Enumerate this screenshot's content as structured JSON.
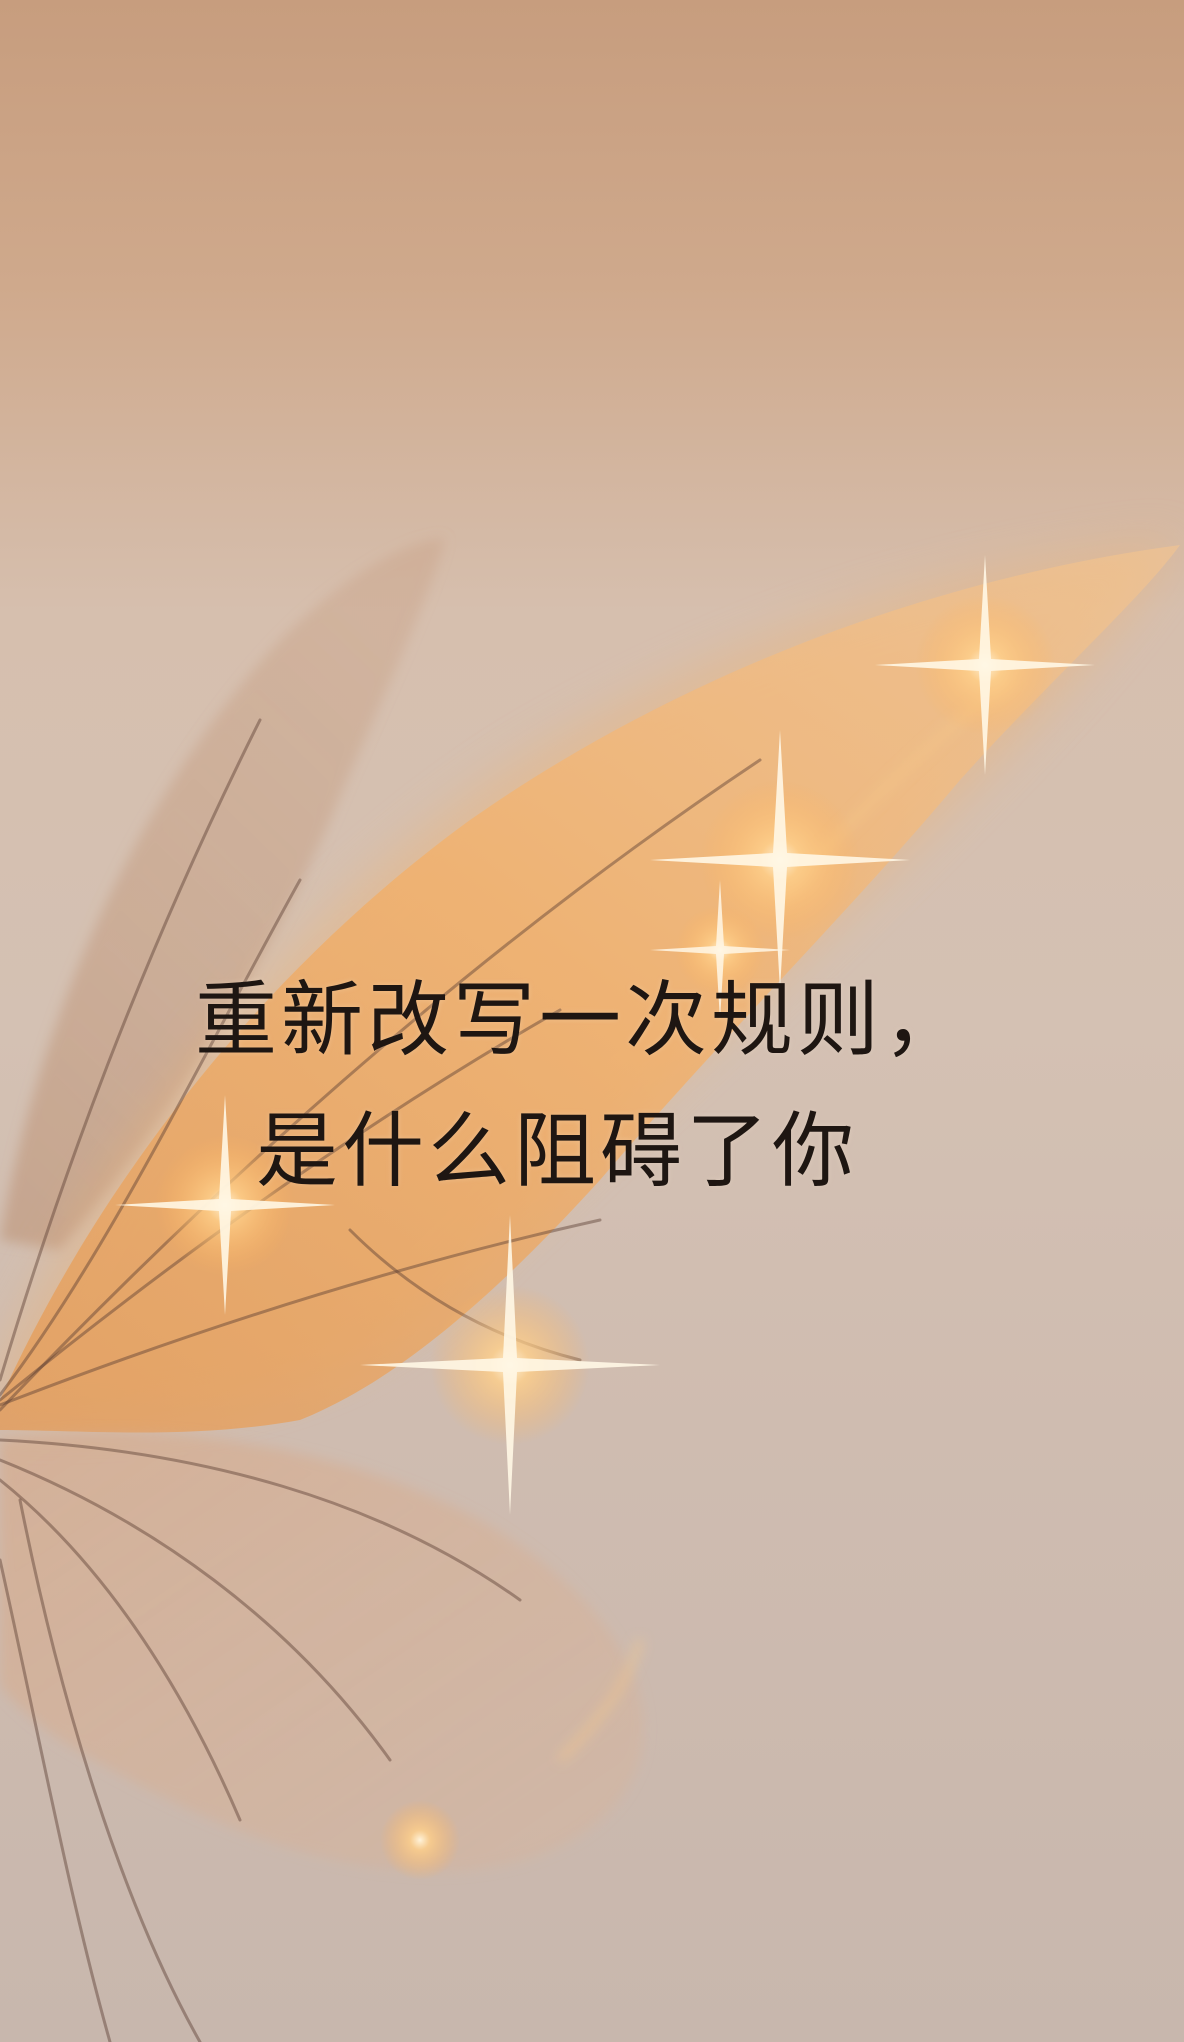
{
  "quote": {
    "line1": "重新改写一次规则，",
    "line2": "是什么阻碍了你"
  },
  "palette": {
    "sky_top": "#c79d7e",
    "haze": "#d4c1b3",
    "wing_glow": "#f2a95a",
    "wing_vein": "#5a3f33",
    "sparkle": "#fff7e6",
    "text": "#1e1612"
  }
}
